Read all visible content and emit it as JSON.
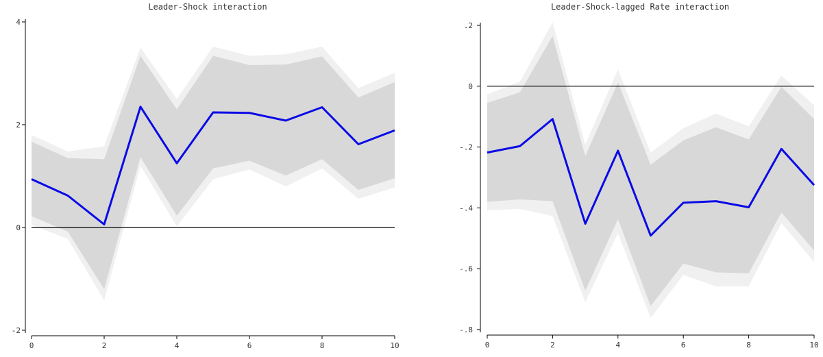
{
  "chart_data": [
    {
      "type": "line",
      "title": "Leader-Shock interaction",
      "xlabel": "",
      "ylabel": "",
      "xlim": [
        0,
        10
      ],
      "ylim": [
        -2,
        4
      ],
      "x_ticks": [
        0,
        2,
        4,
        6,
        8,
        10
      ],
      "x_tick_labels": [
        "0",
        "2",
        "4",
        "6",
        "8",
        "10"
      ],
      "y_ticks": [
        -2,
        0,
        2,
        4
      ],
      "y_tick_labels": [
        "-2",
        "0",
        "2",
        "4"
      ],
      "reference_line": 0,
      "grid": false,
      "x": [
        0,
        1,
        2,
        3,
        4,
        5,
        6,
        7,
        8,
        9,
        10
      ],
      "series": [
        {
          "values": [
            0.94,
            0.62,
            0.06,
            2.35,
            1.25,
            2.24,
            2.23,
            2.08,
            2.34,
            1.62,
            1.89
          ]
        }
      ],
      "bands": [
        {
          "lower": [
            0.05,
            -0.22,
            -1.42,
            1.2,
            0.02,
            0.94,
            1.13,
            0.8,
            1.15,
            0.56,
            0.78
          ],
          "upper": [
            1.8,
            1.48,
            1.58,
            3.5,
            2.5,
            3.52,
            3.34,
            3.37,
            3.52,
            2.71,
            3.01
          ]
        },
        {
          "lower": [
            0.22,
            -0.08,
            -1.2,
            1.37,
            0.23,
            1.15,
            1.3,
            1.01,
            1.33,
            0.73,
            0.96
          ],
          "upper": [
            1.67,
            1.35,
            1.33,
            3.34,
            2.3,
            3.34,
            3.16,
            3.17,
            3.33,
            2.53,
            2.83
          ]
        }
      ],
      "colors": {
        "line": "#0a0ae6",
        "band_outer": "#f0f0f0",
        "band_inner": "#d8d8d8",
        "reference": "#000000",
        "axis": "#000000"
      }
    },
    {
      "type": "line",
      "title": "Leader-Shock-lagged Rate interaction",
      "xlabel": "",
      "ylabel": "",
      "xlim": [
        0,
        10
      ],
      "ylim": [
        -0.8,
        0.2
      ],
      "x_ticks": [
        0,
        2,
        4,
        6,
        8,
        10
      ],
      "x_tick_labels": [
        "0",
        "2",
        "4",
        "6",
        "8",
        "10"
      ],
      "y_ticks": [
        -0.8,
        -0.6,
        -0.4,
        -0.2,
        0,
        0.2
      ],
      "y_tick_labels": [
        "-.8",
        "-.6",
        "-.4",
        "-.2",
        "0",
        ".2"
      ],
      "reference_line": 0,
      "grid": false,
      "x": [
        0,
        1,
        2,
        3,
        4,
        5,
        6,
        7,
        8,
        9,
        10
      ],
      "series": [
        {
          "values": [
            -0.218,
            -0.197,
            -0.108,
            -0.452,
            -0.212,
            -0.491,
            -0.383,
            -0.378,
            -0.398,
            -0.206,
            -0.325
          ]
        }
      ],
      "bands": [
        {
          "lower": [
            -0.408,
            -0.403,
            -0.427,
            -0.71,
            -0.483,
            -0.762,
            -0.62,
            -0.658,
            -0.658,
            -0.45,
            -0.578
          ],
          "upper": [
            -0.027,
            0.015,
            0.21,
            -0.192,
            0.055,
            -0.218,
            -0.138,
            -0.09,
            -0.132,
            0.035,
            -0.063
          ]
        },
        {
          "lower": [
            -0.38,
            -0.372,
            -0.378,
            -0.672,
            -0.437,
            -0.723,
            -0.583,
            -0.612,
            -0.615,
            -0.415,
            -0.54
          ],
          "upper": [
            -0.055,
            -0.02,
            0.165,
            -0.23,
            0.012,
            -0.258,
            -0.178,
            -0.135,
            -0.175,
            -0.002,
            -0.108
          ]
        }
      ],
      "colors": {
        "line": "#0a0ae6",
        "band_outer": "#f0f0f0",
        "band_inner": "#d8d8d8",
        "reference": "#000000",
        "axis": "#000000"
      }
    }
  ]
}
